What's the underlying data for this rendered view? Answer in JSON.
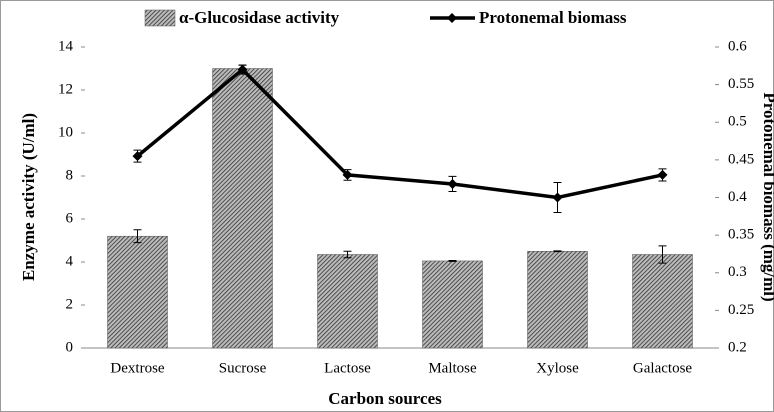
{
  "chart_data": {
    "type": "bar_line",
    "x_label": "Carbon sources",
    "y_label": "Enzyme activity  (U/ml)",
    "y2_label": "Protonemal  biomass  (mg/ml)",
    "categories": [
      "Dextrose",
      "Sucrose",
      "Lactose",
      "Maltose",
      "Xylose",
      "Galactose"
    ],
    "series": [
      {
        "name": "α-Glucosidase activity",
        "type": "bar",
        "color": "#555555",
        "values": [
          5.2,
          13.0,
          4.35,
          4.05,
          4.5,
          4.35
        ],
        "errors": [
          0.3,
          0.15,
          0.15,
          0.02,
          0.02,
          0.4
        ]
      },
      {
        "name": "Protonemal biomass",
        "type": "line",
        "axis": "y2",
        "color": "#000000",
        "values": [
          0.455,
          0.57,
          0.43,
          0.418,
          0.4,
          0.43
        ],
        "errors": [
          0.008,
          0.006,
          0.007,
          0.01,
          0.02,
          0.008
        ]
      }
    ],
    "ylim": [
      0,
      14
    ],
    "yticks": [
      0,
      2,
      4,
      6,
      8,
      10,
      12,
      14
    ],
    "y2lim": [
      0.2,
      0.6
    ],
    "y2ticks": [
      0.2,
      0.25,
      0.3,
      0.35,
      0.4,
      0.45,
      0.5,
      0.55,
      0.6
    ],
    "legend": "top"
  }
}
